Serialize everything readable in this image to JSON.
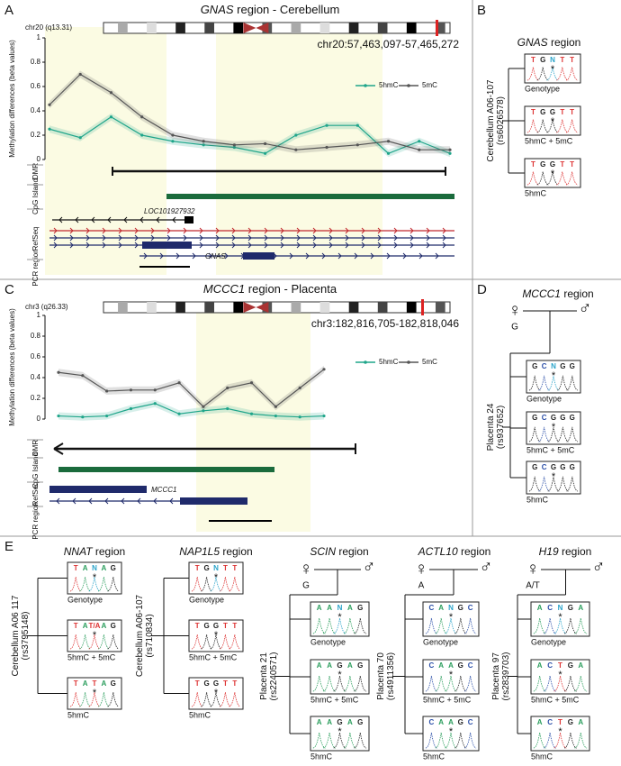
{
  "chart_data": [
    {
      "type": "line",
      "panel_label": "A",
      "title_gene": "GNAS",
      "title_rest": " region - Cerebellum",
      "ideogram_label": "chr20 (q13.31)",
      "coordinates": "chr20:57,463,097-57,465,272",
      "ylabel": "Methylation differences (beta values)",
      "categories": [
        null,
        null,
        null,
        null,
        null,
        null,
        null,
        null,
        null,
        null,
        null,
        null,
        null,
        null
      ],
      "series": [
        {
          "name": "5hmC",
          "color": "#1fa58a",
          "values": [
            0.25,
            0.18,
            0.35,
            0.2,
            0.15,
            0.12,
            0.1,
            0.05,
            0.2,
            0.28,
            0.28,
            0.05,
            0.15,
            0.05
          ]
        },
        {
          "name": "5mC",
          "color": "#555555",
          "values": [
            0.45,
            0.7,
            0.55,
            0.35,
            0.2,
            0.15,
            0.12,
            0.13,
            0.08,
            0.1,
            0.12,
            0.15,
            0.08,
            0.08
          ]
        }
      ],
      "ylim": [
        0,
        1
      ],
      "yticks": [
        0,
        0.2,
        0.4,
        0.6,
        0.8,
        1
      ],
      "tracks": [
        "DMR",
        "CpG Island",
        "RefSeq",
        "PCR region"
      ],
      "genes": [
        "LOC101927932",
        "GNAS"
      ]
    },
    {
      "type": "line",
      "panel_label": "C",
      "title_gene": "MCCC1",
      "title_rest": " region - Placenta",
      "ideogram_label": "chr3 (q26.33)",
      "coordinates": "chr3:182,816,705-182,818,046",
      "ylabel": "Methylation differences (beta values)",
      "categories": [
        null,
        null,
        null,
        null,
        null,
        null,
        null,
        null,
        null,
        null,
        null,
        null
      ],
      "series": [
        {
          "name": "5hmC",
          "color": "#1fa58a",
          "values": [
            0.03,
            0.02,
            0.03,
            0.1,
            0.15,
            0.05,
            0.08,
            0.1,
            0.05,
            0.03,
            0.02,
            0.03
          ]
        },
        {
          "name": "5mC",
          "color": "#555555",
          "values": [
            0.45,
            0.42,
            0.27,
            0.28,
            0.28,
            0.35,
            0.12,
            0.3,
            0.35,
            0.12,
            0.3,
            0.48
          ]
        }
      ],
      "ylim": [
        0,
        1
      ],
      "yticks": [
        0,
        0.2,
        0.4,
        0.6,
        0.8,
        1
      ],
      "tracks": [
        "DMR",
        "CpG Island",
        "RefSeq",
        "PCR region"
      ],
      "genes": [
        "MCCC1"
      ]
    }
  ],
  "genotype_panels": [
    {
      "panel_label": "B",
      "gene": "GNAS",
      "title_rest": " region",
      "sample": "Cerebellum A06-107",
      "snp": "(rs6026578)",
      "marker": "*",
      "boxes": [
        {
          "bases": [
            "T",
            "G",
            "N",
            "T",
            "T"
          ],
          "label": "Genotype"
        },
        {
          "bases": [
            "T",
            "G",
            "G",
            "T",
            "T"
          ],
          "label": "5hmC + 5mC"
        },
        {
          "bases": [
            "T",
            "G",
            "G",
            "T",
            "T"
          ],
          "label": "5hmC"
        }
      ]
    },
    {
      "panel_label": "D",
      "gene": "MCCC1",
      "title_rest": " region",
      "sample": "Placenta 24",
      "snp": "(rs937652)",
      "marker": "*",
      "parents": {
        "female": "♀",
        "male": "♂",
        "allele": "G"
      },
      "boxes": [
        {
          "bases": [
            "G",
            "C",
            "N",
            "G",
            "G"
          ],
          "label": "Genotype"
        },
        {
          "bases": [
            "G",
            "C",
            "G",
            "G",
            "G"
          ],
          "label": "5hmC + 5mC"
        },
        {
          "bases": [
            "G",
            "C",
            "G",
            "G",
            "G"
          ],
          "label": "5hmC"
        }
      ]
    },
    {
      "panel_label": "E",
      "gene": "NNAT",
      "title_rest": " region",
      "sample": "Cerebellum A06 117",
      "snp": "(rs3795148)",
      "marker": "*",
      "boxes": [
        {
          "bases": [
            "T",
            "A",
            "N",
            "A",
            "G"
          ],
          "label": "Genotype"
        },
        {
          "bases": [
            "T",
            "A",
            "T/A",
            "A",
            "G"
          ],
          "label": "5hmC + 5mC"
        },
        {
          "bases": [
            "T",
            "A",
            "T",
            "A",
            "G"
          ],
          "label": "5hmC"
        }
      ]
    },
    {
      "gene": "NAP1L5",
      "title_rest": " region",
      "sample": "Cerebellum A06-107",
      "snp": "(rs710834)",
      "marker": "*",
      "boxes": [
        {
          "bases": [
            "T",
            "G",
            "N",
            "T",
            "T"
          ],
          "label": "Genotype"
        },
        {
          "bases": [
            "T",
            "G",
            "G",
            "T",
            "T"
          ],
          "label": "5hmC + 5mC"
        },
        {
          "bases": [
            "T",
            "G",
            "G",
            "T",
            "T"
          ],
          "label": "5hmC"
        }
      ]
    },
    {
      "gene": "SCIN",
      "title_rest": " region",
      "sample": "Placenta 21",
      "snp": "(rs2240571)",
      "marker": "*",
      "parents": {
        "female": "♀",
        "male": "♂",
        "allele": "G"
      },
      "boxes": [
        {
          "bases": [
            "A",
            "A",
            "N",
            "A",
            "G"
          ],
          "label": "Genotype"
        },
        {
          "bases": [
            "A",
            "A",
            "G",
            "A",
            "G"
          ],
          "label": "5hmC + 5mC"
        },
        {
          "bases": [
            "A",
            "A",
            "G",
            "A",
            "G"
          ],
          "label": "5hmC"
        }
      ]
    },
    {
      "gene": "ACTL10",
      "title_rest": " region",
      "sample": "Placenta 70",
      "snp": "(rs4911356)",
      "marker": "*",
      "parents": {
        "female": "♀",
        "male": "♂",
        "allele": "A"
      },
      "boxes": [
        {
          "bases": [
            "C",
            "A",
            "N",
            "G",
            "C"
          ],
          "label": "Genotype"
        },
        {
          "bases": [
            "C",
            "A",
            "A",
            "G",
            "C"
          ],
          "label": "5hmC + 5mC"
        },
        {
          "bases": [
            "C",
            "A",
            "A",
            "G",
            "C"
          ],
          "label": "5hmC"
        }
      ]
    },
    {
      "gene": "H19",
      "title_rest": " region",
      "sample": "Placenta 97",
      "snp": "(rs2839703)",
      "marker": "*",
      "parents": {
        "female": "♀",
        "male": "♂",
        "allele": "A/T"
      },
      "boxes": [
        {
          "bases": [
            "A",
            "C",
            "N",
            "G",
            "A"
          ],
          "label": "Genotype"
        },
        {
          "bases": [
            "A",
            "C",
            "T",
            "G",
            "A"
          ],
          "label": "5hmC + 5mC"
        },
        {
          "bases": [
            "A",
            "C",
            "T",
            "G",
            "A"
          ],
          "label": "5hmC"
        }
      ]
    }
  ]
}
